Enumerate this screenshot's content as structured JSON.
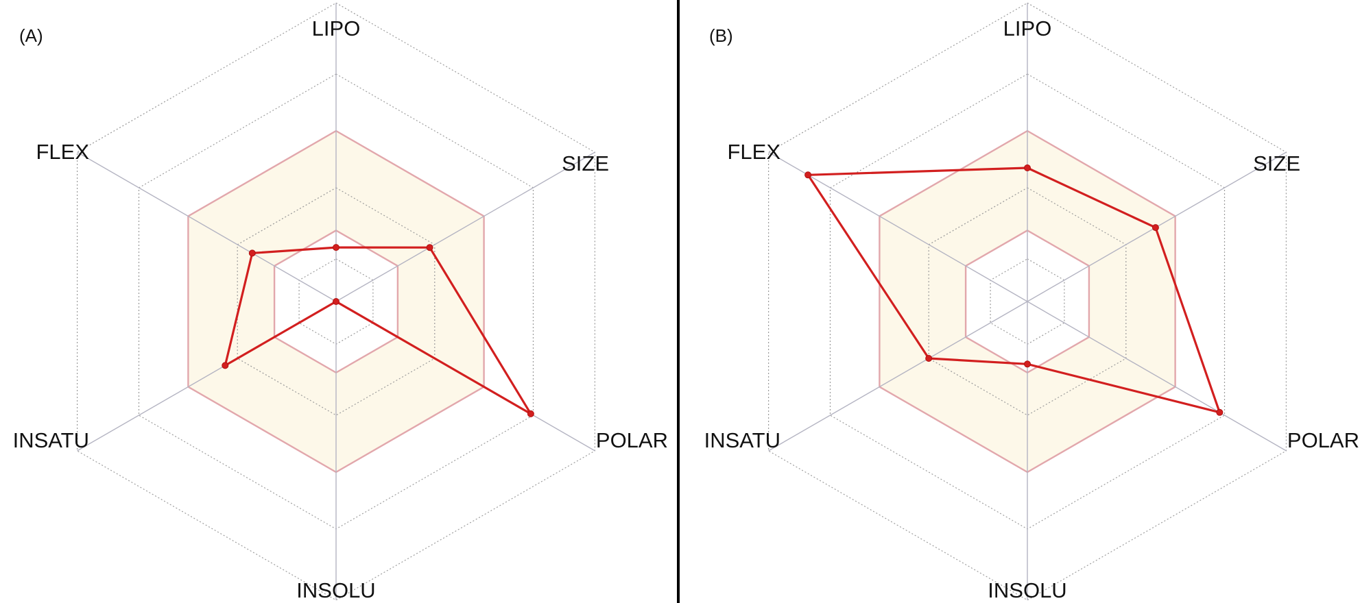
{
  "chart_data": [
    {
      "panel": "(A)",
      "type": "radar",
      "axes": [
        "LIPO",
        "SIZE",
        "POLAR",
        "INSOLU",
        "INSATU",
        "FLEX"
      ],
      "values": [
        0.19,
        0.38,
        0.79,
        0.0,
        0.45,
        0.34
      ],
      "optimal_range": {
        "min": 0.25,
        "max": 0.6
      },
      "rings": [
        0.15,
        0.4,
        0.8,
        1.05
      ],
      "colors": {
        "line": "#d21f1f",
        "optimal_fill": "#fdf8e9",
        "optimal_border": "#e2a7ac",
        "grid": "#9a9a9a"
      }
    },
    {
      "panel": "(B)",
      "type": "radar",
      "axes": [
        "LIPO",
        "SIZE",
        "POLAR",
        "INSOLU",
        "INSATU",
        "FLEX"
      ],
      "values": [
        0.47,
        0.52,
        0.78,
        0.22,
        0.4,
        0.89
      ],
      "optimal_range": {
        "min": 0.25,
        "max": 0.6
      },
      "rings": [
        0.15,
        0.4,
        0.8,
        1.05
      ],
      "colors": {
        "line": "#d21f1f",
        "optimal_fill": "#fdf8e9",
        "optimal_border": "#e2a7ac",
        "grid": "#9a9a9a"
      }
    }
  ]
}
